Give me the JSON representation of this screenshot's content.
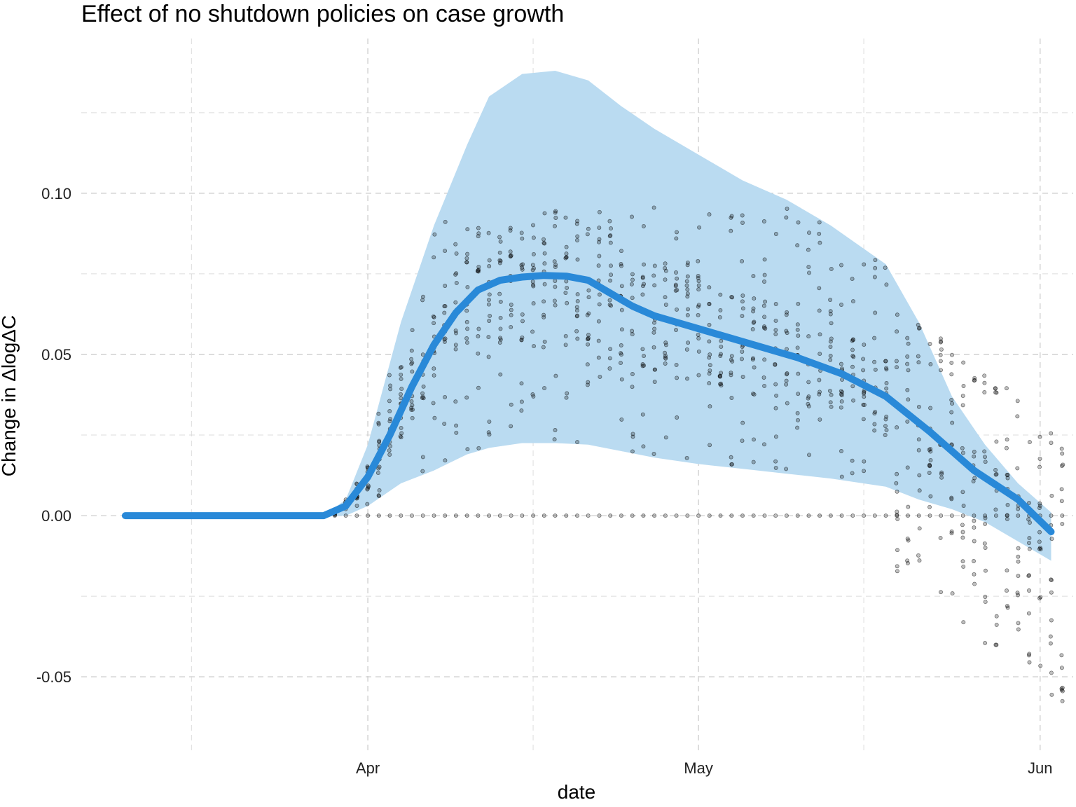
{
  "chart_data": {
    "type": "scatter",
    "title": "Effect of no shutdown policies on case growth",
    "xlabel": "date",
    "ylabel": "Change in ΔlogΔC",
    "x_axis": {
      "type": "date",
      "range": [
        "2020-03-06",
        "2020-06-04"
      ],
      "tick_labels": [
        "Apr",
        "May",
        "Jun"
      ],
      "tick_values": [
        "2020-04-01",
        "2020-05-01",
        "2020-06-01"
      ],
      "minor_ticks": [
        "2020-03-16",
        "2020-04-16",
        "2020-05-16"
      ]
    },
    "y_axis": {
      "range": [
        -0.073,
        0.148
      ],
      "tick_labels": [
        "-0.05",
        "0.00",
        "0.05",
        "0.10"
      ],
      "tick_values": [
        -0.05,
        0.0,
        0.05,
        0.1
      ],
      "minor_ticks": [
        -0.025,
        0.025,
        0.075,
        0.125
      ]
    },
    "grid": true,
    "legend": "none",
    "colors": {
      "fit_line": "#2989d8",
      "band": "#badbf1",
      "points": "#000000"
    },
    "series": [
      {
        "kind": "line",
        "x": [
          "2020-03-10",
          "2020-03-20",
          "2020-03-28",
          "2020-03-30",
          "2020-04-01",
          "2020-04-03",
          "2020-04-05",
          "2020-04-07",
          "2020-04-09",
          "2020-04-11",
          "2020-04-13",
          "2020-04-15",
          "2020-04-17",
          "2020-04-19",
          "2020-04-21",
          "2020-04-23",
          "2020-04-25",
          "2020-04-27",
          "2020-04-29",
          "2020-05-01",
          "2020-05-05",
          "2020-05-10",
          "2020-05-14",
          "2020-05-18",
          "2020-05-22",
          "2020-05-26",
          "2020-05-30",
          "2020-06-02"
        ],
        "values": [
          0.0,
          0.0,
          0.0,
          0.003,
          0.012,
          0.025,
          0.04,
          0.053,
          0.063,
          0.07,
          0.073,
          0.074,
          0.0745,
          0.0743,
          0.073,
          0.069,
          0.065,
          0.062,
          0.06,
          0.058,
          0.054,
          0.049,
          0.044,
          0.037,
          0.026,
          0.014,
          0.005,
          -0.005
        ]
      },
      {
        "kind": "band",
        "x": [
          "2020-03-28",
          "2020-03-30",
          "2020-04-01",
          "2020-04-04",
          "2020-04-07",
          "2020-04-10",
          "2020-04-12",
          "2020-04-15",
          "2020-04-18",
          "2020-04-21",
          "2020-04-24",
          "2020-04-27",
          "2020-05-01",
          "2020-05-05",
          "2020-05-09",
          "2020-05-13",
          "2020-05-18",
          "2020-05-21",
          "2020-05-24",
          "2020-05-27",
          "2020-05-30",
          "2020-06-02"
        ],
        "upper": [
          0.0,
          0.005,
          0.022,
          0.06,
          0.09,
          0.115,
          0.13,
          0.137,
          0.138,
          0.135,
          0.127,
          0.12,
          0.112,
          0.104,
          0.098,
          0.09,
          0.078,
          0.06,
          0.037,
          0.022,
          0.01,
          0.001
        ],
        "lower": [
          0.0,
          0.0,
          0.003,
          0.01,
          0.014,
          0.019,
          0.021,
          0.0225,
          0.0225,
          0.022,
          0.02,
          0.018,
          0.016,
          0.0145,
          0.013,
          0.0115,
          0.009,
          0.005,
          0.002,
          -0.002,
          -0.008,
          -0.014
        ]
      }
    ]
  }
}
